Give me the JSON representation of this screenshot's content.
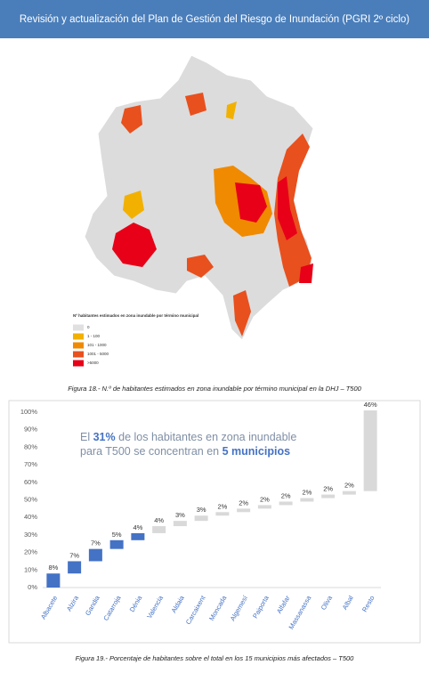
{
  "header": {
    "title": "Revisión y actualización del Plan de Gestión del Riesgo de Inundación (PGRI 2º ciclo)"
  },
  "map": {
    "legend_title": "Nº habitantes estimados en zona inundable por término municipal",
    "legend": [
      {
        "label": "0",
        "color": "#e0e0e0"
      },
      {
        "label": "1 - 100",
        "color": "#f2b100"
      },
      {
        "label": "101 - 1000",
        "color": "#f08a00"
      },
      {
        "label": "1001 - 5000",
        "color": "#e8501e"
      },
      {
        "label": ">5000",
        "color": "#e80018"
      }
    ]
  },
  "figure18": {
    "caption": "Figura 18.- N.º de habitantes estimados en zona inundable por término municipal en la DHJ – T500"
  },
  "chart_data": {
    "type": "waterfall",
    "annotation": [
      "El",
      "31%",
      "de los habitantes en zona inundable",
      "para T500 se concentran en",
      "5 municipios"
    ],
    "categories": [
      "Albacete",
      "Alzira",
      "Gandia",
      "Catarroja",
      "Dénia",
      "Valencia",
      "Aldaia",
      "Carcaixent",
      "Moncada",
      "Algemesí",
      "Paiporta",
      "Alfafar",
      "Massanassa",
      "Oliva",
      "Albal",
      "Resto"
    ],
    "values": [
      8,
      7,
      7,
      5,
      4,
      4,
      3,
      3,
      2,
      2,
      2,
      2,
      2,
      2,
      2,
      46
    ],
    "value_labels": [
      "8%",
      "7%",
      "7%",
      "5%",
      "4%",
      "4%",
      "3%",
      "3%",
      "2%",
      "2%",
      "2%",
      "2%",
      "2%",
      "2%",
      "2%",
      "46%"
    ],
    "colors": [
      "#4472c4",
      "#4472c4",
      "#4472c4",
      "#4472c4",
      "#4472c4",
      "#d9d9d9",
      "#d9d9d9",
      "#d9d9d9",
      "#d9d9d9",
      "#d9d9d9",
      "#d9d9d9",
      "#d9d9d9",
      "#d9d9d9",
      "#d9d9d9",
      "#d9d9d9",
      "#d9d9d9"
    ],
    "ylim": [
      0,
      100
    ],
    "yticks": [
      {
        "value": 0,
        "label": "0%"
      },
      {
        "value": 10,
        "label": "10%"
      },
      {
        "value": 20,
        "label": "20%"
      },
      {
        "value": 30,
        "label": "30%"
      },
      {
        "value": 40,
        "label": "40%"
      },
      {
        "value": 50,
        "label": "50%"
      },
      {
        "value": 60,
        "label": "60%"
      },
      {
        "value": 70,
        "label": "70%"
      },
      {
        "value": 80,
        "label": "80%"
      },
      {
        "value": 90,
        "label": "90%"
      },
      {
        "value": 100,
        "label": "100%"
      }
    ]
  },
  "figure19": {
    "caption": "Figura 19.- Porcentaje de habitantes sobre el total en los 15 municipios más afectados – T500"
  }
}
